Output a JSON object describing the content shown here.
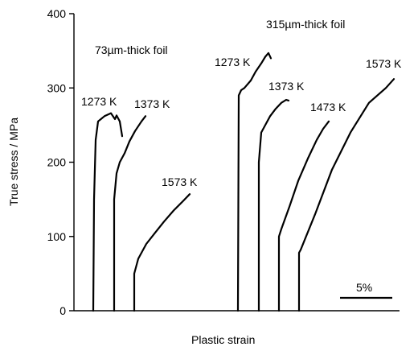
{
  "chart_data": {
    "type": "line",
    "xlabel": "Plastic strain",
    "ylabel": "True stress / MPa",
    "ylim": [
      0,
      400
    ],
    "yticks": [
      0,
      100,
      200,
      300,
      400
    ],
    "grid": false,
    "scale_bar_label": "5%",
    "group_labels": [
      "73µm-thick foil",
      "315µm-thick foil"
    ],
    "series": [
      {
        "name": "1273 K",
        "group": "73µm-thick foil",
        "y": [
          0,
          150,
          230,
          255,
          262,
          266,
          258,
          263,
          255,
          235
        ]
      },
      {
        "name": "1373 K",
        "group": "73µm-thick foil",
        "y": [
          0,
          150,
          185,
          200,
          212,
          228,
          242,
          255,
          262
        ]
      },
      {
        "name": "1573 K",
        "group": "73µm-thick foil",
        "y": [
          0,
          50,
          70,
          90,
          105,
          120,
          135,
          148,
          157
        ]
      },
      {
        "name": "1273 K",
        "group": "315µm-thick foil",
        "y": [
          0,
          290,
          297,
          300,
          310,
          322,
          333,
          342,
          347,
          340
        ]
      },
      {
        "name": "1373 K",
        "group": "315µm-thick foil",
        "y": [
          0,
          200,
          240,
          250,
          262,
          272,
          280,
          284,
          283
        ]
      },
      {
        "name": "1473 K",
        "group": "315µm-thick foil",
        "y": [
          0,
          100,
          110,
          140,
          175,
          205,
          230,
          245,
          255
        ]
      },
      {
        "name": "1573 K",
        "group": "315µm-thick foil",
        "y": [
          0,
          78,
          82,
          130,
          190,
          240,
          280,
          300,
          312
        ]
      }
    ]
  }
}
